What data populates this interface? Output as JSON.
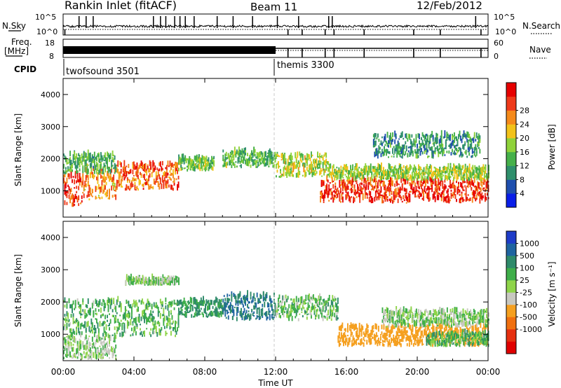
{
  "header": {
    "station": "Rankin Inlet (fitACF)",
    "beam": "Beam 11",
    "date": "12/Feb/2012"
  },
  "nsky_panel": {
    "left_label": "N.Sky",
    "right_label": "N.Search",
    "tick_top": "10^5",
    "tick_bottom": "10^0",
    "right_tick_top": "10^5",
    "right_tick_bottom": "10^0"
  },
  "freq_panel": {
    "left_label_line1": "Freq.",
    "left_label_line2": "[MHz]",
    "right_label": "Nave",
    "left_tick_top": "18",
    "left_tick_bottom": "8",
    "right_tick_top": "60",
    "right_tick_bottom": "0"
  },
  "cpid": {
    "label": "CPID",
    "modes": [
      {
        "name": "twofsound 3501",
        "start_hour": 0
      },
      {
        "name": "themis 3300",
        "start_hour": 12
      }
    ]
  },
  "power_panel": {
    "ylabel": "Slant Range [km]",
    "y_ticks": [
      "1000",
      "2000",
      "3000",
      "4000"
    ],
    "colorbar_label": "Power [dB]",
    "colorbar_ticks": [
      "4",
      "8",
      "12",
      "16",
      "20",
      "24",
      "28"
    ],
    "colors": [
      "#0a1ee8",
      "#1f4fae",
      "#2f8f6c",
      "#46b04a",
      "#8fd23a",
      "#f2c21a",
      "#f58a1b",
      "#ef3a1a",
      "#e60000"
    ]
  },
  "velocity_panel": {
    "ylabel": "Slant Range [km]",
    "y_ticks": [
      "1000",
      "2000",
      "3000",
      "4000"
    ],
    "colorbar_label": "Velocity [m s⁻¹]",
    "colorbar_ticks": [
      "1000",
      "500",
      "100",
      "25",
      "-25",
      "-100",
      "-500",
      "-1000"
    ],
    "colors": [
      "#1e3cc8",
      "#1f64a0",
      "#2e8a6a",
      "#3fae4a",
      "#8fd44a",
      "#c8c8c0",
      "#f5a020",
      "#f07010",
      "#e63010",
      "#e00000"
    ]
  },
  "chart_data": {
    "type": "heatmap",
    "x_range_hours": [
      0,
      24
    ],
    "xlabel": "Time UT",
    "x_ticks": [
      "00:00",
      "04:00",
      "08:00",
      "12:00",
      "16:00",
      "20:00",
      "00:00"
    ],
    "y_range_km": [
      180,
      4500
    ],
    "ylabel": "Slant Range [km]",
    "series": [
      {
        "name": "Power [dB]",
        "bands": [
          {
            "t0": 0.0,
            "t1": 1.2,
            "r0": 500,
            "r1": 1500,
            "value": 27
          },
          {
            "t0": 1.2,
            "t1": 3.0,
            "r0": 700,
            "r1": 1700,
            "value": 22
          },
          {
            "t0": 3.0,
            "t1": 6.5,
            "r0": 1000,
            "r1": 1800,
            "value": 25
          },
          {
            "t0": 0.0,
            "t1": 3.0,
            "r0": 1500,
            "r1": 2100,
            "value": 12
          },
          {
            "t0": 6.5,
            "t1": 8.5,
            "r0": 1600,
            "r1": 2000,
            "value": 14
          },
          {
            "t0": 9.0,
            "t1": 12.0,
            "r0": 1700,
            "r1": 2200,
            "value": 13
          },
          {
            "t0": 12.0,
            "t1": 15.0,
            "r0": 1400,
            "r1": 2100,
            "value": 17
          },
          {
            "t0": 14.5,
            "t1": 24.0,
            "r0": 600,
            "r1": 1300,
            "value": 27
          },
          {
            "t0": 15.0,
            "t1": 24.0,
            "r0": 1300,
            "r1": 1700,
            "value": 16
          },
          {
            "t0": 17.5,
            "t1": 23.5,
            "r0": 2000,
            "r1": 2700,
            "value": 10
          }
        ]
      },
      {
        "name": "Velocity [m s⁻¹]",
        "bands": [
          {
            "t0": 0.0,
            "t1": 6.5,
            "r0": 900,
            "r1": 2000,
            "value": 60
          },
          {
            "t0": 0.0,
            "t1": 3.0,
            "r0": 200,
            "r1": 900,
            "value": 0
          },
          {
            "t0": 6.5,
            "t1": 9.0,
            "r0": 1500,
            "r1": 2000,
            "value": 120
          },
          {
            "t0": 9.0,
            "t1": 12.0,
            "r0": 1400,
            "r1": 2200,
            "value": 500
          },
          {
            "t0": 12.0,
            "t1": 15.5,
            "r0": 1400,
            "r1": 2100,
            "value": 40
          },
          {
            "t0": 15.5,
            "t1": 24.0,
            "r0": 600,
            "r1": 1200,
            "value": -200
          },
          {
            "t0": 18.0,
            "t1": 24.0,
            "r0": 1200,
            "r1": 1700,
            "value": 0
          },
          {
            "t0": 20.5,
            "t1": 24.0,
            "r0": 600,
            "r1": 1000,
            "value": 60
          },
          {
            "t0": 3.5,
            "t1": 6.5,
            "r0": 2500,
            "r1": 2700,
            "value": 0
          }
        ]
      }
    ],
    "nsky_spikes_hours": [
      0.9,
      1.3,
      1.7,
      5.1,
      5.5,
      5.8,
      6.3,
      6.6,
      6.9,
      7.4,
      8.7,
      9.6,
      10.7,
      12.1,
      13.3,
      15.0,
      15.2,
      23.3
    ],
    "nsearch_dips_hours": [
      0.1,
      12.7,
      13.5,
      14.8,
      15.3,
      17.0,
      19.8,
      21.3,
      23.6
    ],
    "freq_nave_dips_hours": [
      12.7,
      13.5,
      14.8,
      15.3,
      17.0,
      19.8,
      21.3,
      23.6
    ]
  }
}
